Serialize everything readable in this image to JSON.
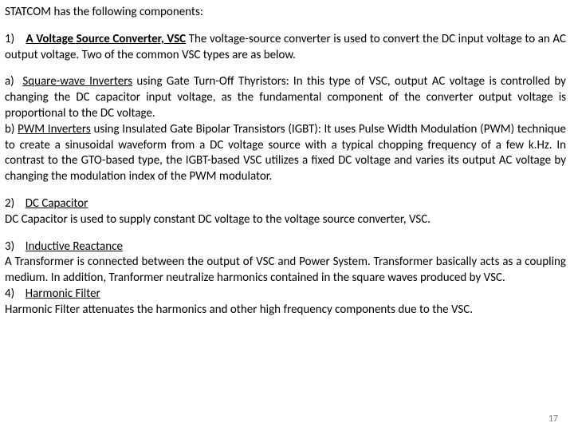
{
  "intro": "STATCOM has the following components:",
  "sec1": {
    "num": "1)",
    "head": "A Voltage Source Converter, VSC",
    "body": " The voltage-source converter is used to convert the DC input voltage to an AC output voltage. Two of the common VSC types are as below."
  },
  "sub_a": {
    "num": "a)",
    "head": "Square-wave Inverters",
    "body": " using Gate Turn-Off Thyristors: In this type of VSC, output AC voltage is controlled by changing the DC capacitor input voltage, as the fundamental component of the converter output voltage is proportional to the DC voltage."
  },
  "sub_b": {
    "num": "b)",
    "head": "PWM Inverters",
    "body": " using Insulated Gate Bipolar Transistors (IGBT): It uses Pulse Width Modulation (PWM) technique to create a sinusoidal waveform from a DC voltage source with a typical chopping frequency of a few k.Hz. In contrast to the GTO-based type, the IGBT-based VSC utilizes a fixed DC voltage and varies its output AC voltage by changing the modulation index of the PWM modulator."
  },
  "sec2": {
    "num": "2)",
    "head": "DC Capacitor",
    "body": "DC Capacitor is used to supply constant DC voltage to the voltage source converter, VSC."
  },
  "sec3": {
    "num": "3)",
    "head": "Inductive Reactance",
    "body": "A Transformer is connected between the output of VSC and Power System. Transformer basically acts as a coupling medium. In addition, Tranformer neutralize harmonics contained in the square waves produced by VSC."
  },
  "sec4": {
    "num": "4)",
    "head": "Harmonic Filter",
    "body": "Harmonic Filter attenuates the harmonics and other high frequency components due to the VSC."
  },
  "page_number": "17"
}
